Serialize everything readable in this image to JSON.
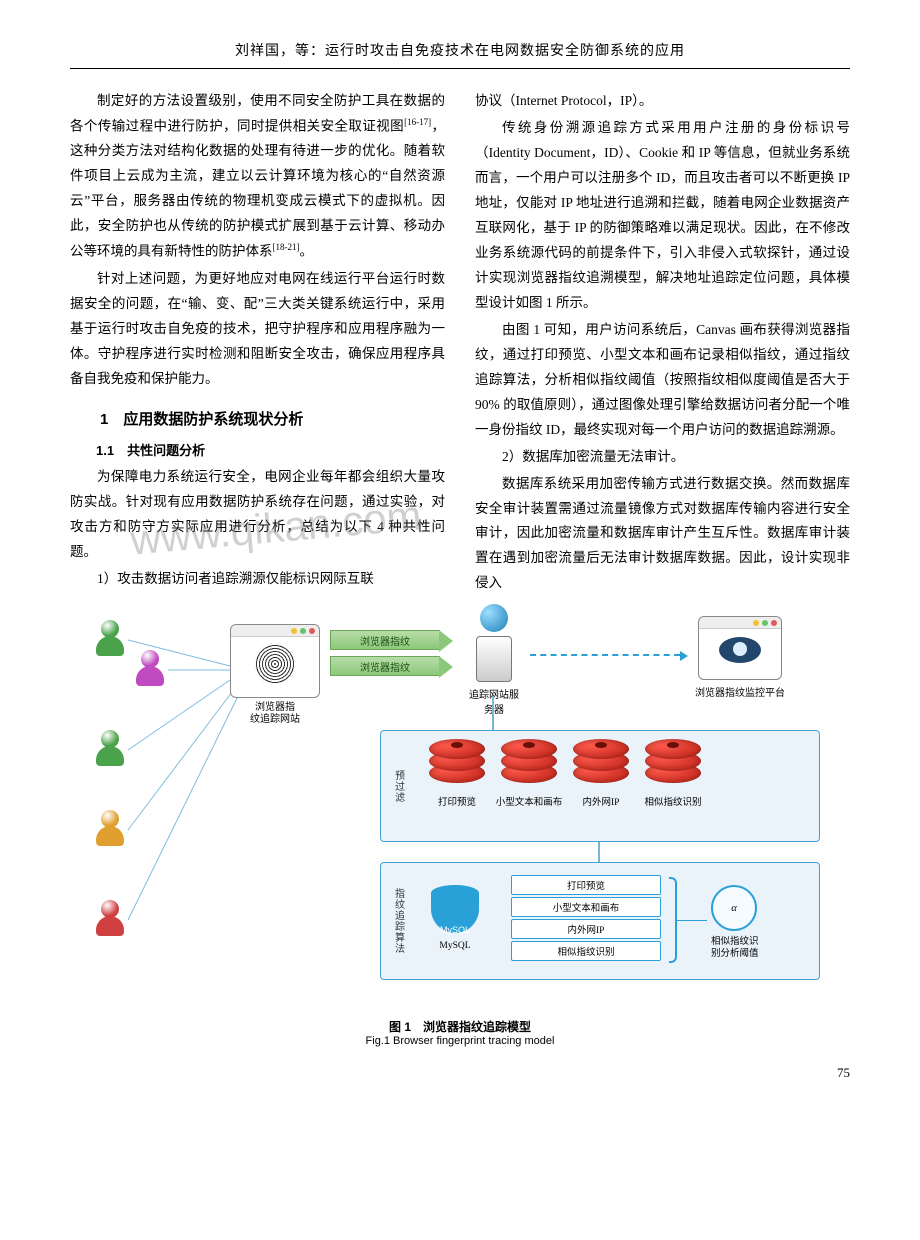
{
  "header": "刘祥国，等：运行时攻击自免疫技术在电网数据安全防御系统的应用",
  "left": {
    "p1": "制定好的方法设置级别，使用不同安全防护工具在数据的各个传输过程中进行防护，同时提供相关安全取证视图<sup>[16-17]</sup>，这种分类方法对结构化数据的处理有待进一步的优化。随着软件项目上云成为主流，建立以云计算环境为核心的“自然资源云”平台，服务器由传统的物理机变成云模式下的虚拟机。因此，安全防护也从传统的防护模式扩展到基于云计算、移动办公等环境的具有新特性的防护体系<sup>[18-21]</sup>。",
    "p2": "针对上述问题，为更好地应对电网在线运行平台运行时数据安全的问题，在“输、变、配”三大类关键系统运行中，采用基于运行时攻击自免疫的技术，把守护程序和应用程序融为一体。守护程序进行实时检测和阻断安全攻击，确保应用程序具备自我免疫和保护能力。",
    "h1": "1　应用数据防护系统现状分析",
    "h2": "1.1　共性问题分析",
    "p3": "为保障电力系统运行安全，电网企业每年都会组织大量攻防实战。针对现有应用数据防护系统存在问题，通过实验，对攻击方和防守方实际应用进行分析，总结为以下 4 种共性问题。",
    "p4": "1）攻击数据访问者追踪溯源仅能标识网际互联"
  },
  "right": {
    "p1a": "协议（Internet Protocol，IP）。",
    "p2": "传统身份溯源追踪方式采用用户注册的身份标识号（Identity Document，ID）、Cookie 和 IP 等信息，但就业务系统而言，一个用户可以注册多个 ID，而且攻击者可以不断更换 IP 地址，仅能对 IP 地址进行追溯和拦截，随着电网企业数据资产互联网化，基于 IP 的防御策略难以满足现状。因此，在不修改业务系统源代码的前提条件下，引入非侵入式软探针，通过设计实现浏览器指纹追溯模型，解决地址追踪定位问题，具体模型设计如图 1 所示。",
    "p3": "由图 1 可知，用户访问系统后，Canvas 画布获得浏览器指纹，通过打印预览、小型文本和画布记录相似指纹，通过指纹追踪算法，分析相似指纹阈值（按照指纹相似度阈值是否大于 90% 的取值原则），通过图像处理引擎给数据访问者分配一个唯一身份指纹 ID，最终实现对每一个用户访问的数据追踪溯源。",
    "p4": "2）数据库加密流量无法审计。",
    "p5": "数据库系统采用加密传输方式进行数据交换。然而数据库安全审计装置需通过流量镜像方式对数据库传输内容进行安全审计，因此加密流量和数据库审计产生互斥性。数据库审计装置在遇到加密流量后无法审计数据库数据。因此，设计实现非侵入"
  },
  "fig": {
    "caption_zh": "图 1　浏览器指纹追踪模型",
    "caption_en": "Fig.1 Browser fingerprint tracing model",
    "site_label": "浏览器指\n纹追踪网站",
    "arrow_label": "浏览器指纹",
    "server_label": "追踪网站服务器",
    "eye_label": "浏览器指纹监控平台",
    "prefilter": "预\n过\n滤",
    "stack1": "打印预览",
    "stack2": "小型文本和画布",
    "stack3": "内外网IP",
    "stack4": "相似指纹识别",
    "algo_side": "指\n纹\n追\n踪\n算\n法",
    "mysql": "MySQL",
    "pill1": "打印预览",
    "pill2": "小型文本和画布",
    "pill3": "内外网IP",
    "pill4": "相似指纹识别",
    "alpha": "α",
    "alpha_label": "相似指纹识\n别分析阈值",
    "user_colors": [
      "#4aa24a",
      "#c04ac0",
      "#e0a030",
      "#d04040"
    ]
  },
  "watermark": "www.qikan.com",
  "pagenum": "75"
}
